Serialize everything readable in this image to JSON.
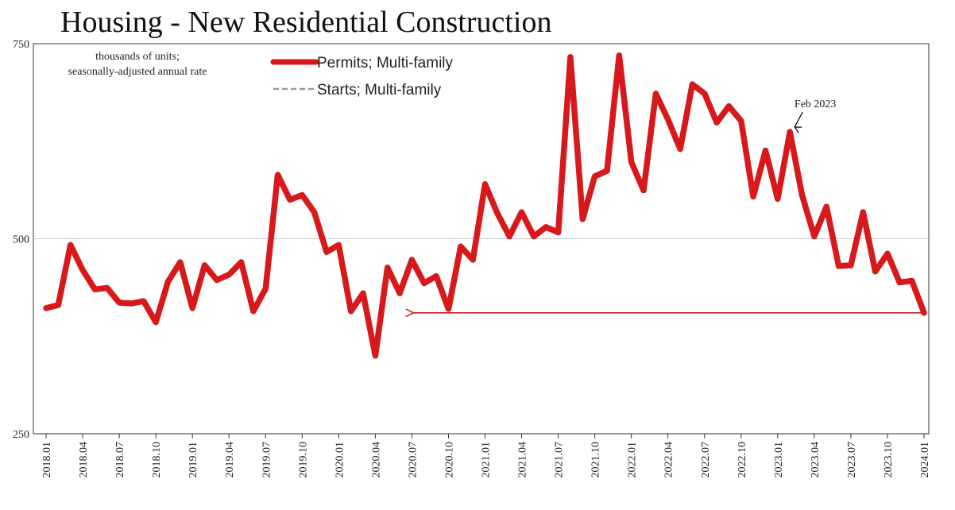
{
  "chart_data": {
    "type": "line",
    "title": "Housing - New Residential Construction",
    "subtitle_lines": [
      "thousands of units;",
      "seasonally-adjusted annual rate"
    ],
    "ylim": [
      250,
      750
    ],
    "yticks": [
      250,
      500,
      750
    ],
    "xticks": [
      "2018.01",
      "2018.04",
      "2018.07",
      "2018.10",
      "2019.01",
      "2019.04",
      "2019.07",
      "2019.10",
      "2020.01",
      "2020.04",
      "2020.07",
      "2020.10",
      "2021.01",
      "2021.04",
      "2021.07",
      "2021.10",
      "2022.01",
      "2022.04",
      "2022.07",
      "2022.10",
      "2023.01",
      "2023.04",
      "2023.07",
      "2023.10",
      "2024.01"
    ],
    "series": [
      {
        "name": "Permits; Multi-family",
        "color": "#d7191c",
        "values": [
          411,
          415,
          492,
          460,
          435,
          437,
          418,
          417,
          420,
          393,
          445,
          470,
          411,
          466,
          447,
          454,
          470,
          407,
          436,
          582,
          550,
          556,
          534,
          483,
          492,
          407,
          430,
          350,
          463,
          430,
          473,
          443,
          452,
          410,
          490,
          473,
          570,
          533,
          503,
          534,
          503,
          515,
          508,
          733,
          525,
          580,
          587,
          735,
          598,
          562,
          686,
          653,
          615,
          698,
          686,
          649,
          670,
          651,
          554,
          613,
          551,
          637,
          556,
          503,
          541,
          465,
          466,
          534,
          458,
          481,
          444,
          446,
          405
        ]
      },
      {
        "name": "Starts; Multi-family",
        "color": "#999999",
        "style": "dashed",
        "values": []
      }
    ],
    "annotations": [
      {
        "text": "Feb 2023",
        "x_index": 61
      },
      {
        "text": "",
        "type": "arrow",
        "from_index": 72,
        "to_index": 30,
        "level": 405
      }
    ]
  }
}
